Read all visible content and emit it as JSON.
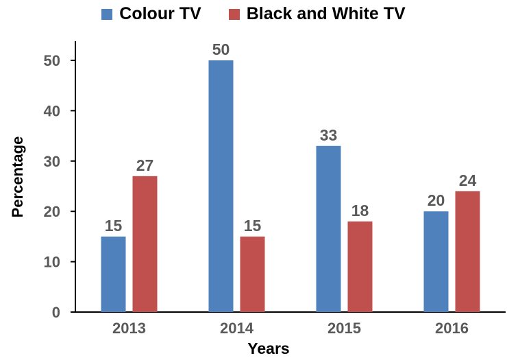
{
  "chart_data": {
    "type": "bar",
    "categories": [
      "2013",
      "2014",
      "2015",
      "2016"
    ],
    "series": [
      {
        "name": "Colour TV",
        "values": [
          15,
          50,
          33,
          20
        ],
        "color": "#4F81BD"
      },
      {
        "name": "Black and White TV",
        "values": [
          27,
          15,
          18,
          24
        ],
        "color": "#C0504D"
      }
    ],
    "xlabel": "Years",
    "ylabel": "Percentage",
    "ylim": [
      0,
      50
    ],
    "yticks": [
      0,
      10,
      20,
      30,
      40,
      50
    ],
    "legend_position": "top",
    "grid": false
  }
}
